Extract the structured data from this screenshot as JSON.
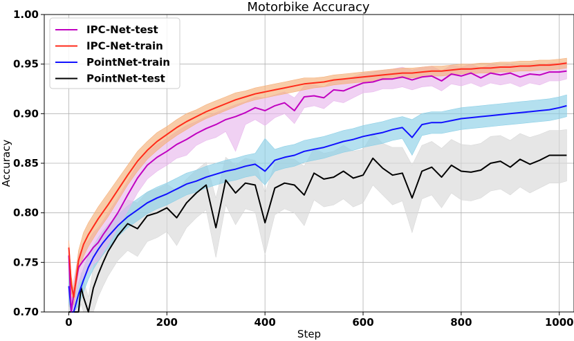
{
  "chart_data": {
    "type": "line",
    "title": "Motorbike Accuracy",
    "xlabel": "Step",
    "ylabel": "Accuracy",
    "xlim": [
      -50,
      1030
    ],
    "ylim": [
      0.7,
      1.0
    ],
    "xticks": [
      "0",
      "200",
      "400",
      "600",
      "800",
      "1000"
    ],
    "xtick_values": [
      0,
      200,
      400,
      600,
      800,
      1000
    ],
    "yticks": [
      "0.70",
      "0.75",
      "0.80",
      "0.85",
      "0.90",
      "0.95",
      "1.00"
    ],
    "ytick_values": [
      0.7,
      0.75,
      0.8,
      0.85,
      0.9,
      0.95,
      1.0
    ],
    "grid": true,
    "legend_position": "top-left",
    "series": [
      {
        "name": "IPC-Net-test",
        "color": "#c000c0",
        "band_color": "#e8b8ec",
        "x": [
          0,
          5,
          10,
          20,
          30,
          40,
          50,
          60,
          70,
          80,
          100,
          120,
          140,
          160,
          180,
          200,
          220,
          240,
          260,
          280,
          300,
          320,
          340,
          360,
          380,
          400,
          420,
          440,
          460,
          480,
          500,
          520,
          540,
          560,
          580,
          600,
          620,
          640,
          660,
          680,
          700,
          720,
          740,
          760,
          780,
          800,
          820,
          840,
          860,
          880,
          900,
          920,
          940,
          960,
          980,
          1000,
          1015
        ],
        "mean": [
          0.757,
          0.7,
          0.718,
          0.745,
          0.752,
          0.758,
          0.765,
          0.77,
          0.778,
          0.785,
          0.8,
          0.818,
          0.835,
          0.848,
          0.856,
          0.862,
          0.869,
          0.874,
          0.88,
          0.885,
          0.889,
          0.894,
          0.897,
          0.901,
          0.906,
          0.903,
          0.908,
          0.911,
          0.903,
          0.917,
          0.918,
          0.916,
          0.924,
          0.923,
          0.927,
          0.931,
          0.932,
          0.935,
          0.935,
          0.937,
          0.934,
          0.937,
          0.938,
          0.933,
          0.94,
          0.938,
          0.941,
          0.936,
          0.941,
          0.939,
          0.941,
          0.937,
          0.94,
          0.939,
          0.942,
          0.942,
          0.943
        ],
        "low": [
          0.74,
          0.7,
          0.702,
          0.728,
          0.735,
          0.74,
          0.748,
          0.752,
          0.76,
          0.768,
          0.785,
          0.802,
          0.82,
          0.834,
          0.842,
          0.848,
          0.855,
          0.858,
          0.868,
          0.873,
          0.876,
          0.882,
          0.862,
          0.889,
          0.894,
          0.888,
          0.896,
          0.9,
          0.89,
          0.906,
          0.908,
          0.905,
          0.913,
          0.911,
          0.916,
          0.921,
          0.922,
          0.925,
          0.925,
          0.927,
          0.924,
          0.927,
          0.928,
          0.923,
          0.93,
          0.928,
          0.931,
          0.927,
          0.931,
          0.929,
          0.931,
          0.927,
          0.931,
          0.929,
          0.933,
          0.933,
          0.935
        ],
        "high": [
          0.77,
          0.712,
          0.732,
          0.758,
          0.766,
          0.772,
          0.78,
          0.785,
          0.792,
          0.8,
          0.815,
          0.832,
          0.849,
          0.861,
          0.869,
          0.875,
          0.882,
          0.888,
          0.892,
          0.897,
          0.901,
          0.905,
          0.909,
          0.912,
          0.917,
          0.916,
          0.919,
          0.922,
          0.916,
          0.928,
          0.929,
          0.927,
          0.934,
          0.934,
          0.937,
          0.941,
          0.942,
          0.944,
          0.945,
          0.947,
          0.944,
          0.947,
          0.948,
          0.943,
          0.949,
          0.947,
          0.95,
          0.946,
          0.95,
          0.948,
          0.95,
          0.947,
          0.949,
          0.948,
          0.951,
          0.951,
          0.952
        ]
      },
      {
        "name": "IPC-Net-train",
        "color": "#ff2a1a",
        "band_color": "#f5b07a",
        "x": [
          0,
          5,
          10,
          20,
          30,
          40,
          50,
          60,
          70,
          80,
          100,
          120,
          140,
          160,
          180,
          200,
          220,
          240,
          260,
          280,
          300,
          320,
          340,
          360,
          380,
          400,
          420,
          440,
          460,
          480,
          500,
          520,
          540,
          560,
          580,
          600,
          620,
          640,
          660,
          680,
          700,
          720,
          740,
          760,
          780,
          800,
          820,
          840,
          860,
          880,
          900,
          920,
          940,
          960,
          980,
          1000,
          1015
        ],
        "mean": [
          0.765,
          0.728,
          0.715,
          0.752,
          0.768,
          0.778,
          0.786,
          0.794,
          0.801,
          0.808,
          0.823,
          0.838,
          0.852,
          0.863,
          0.872,
          0.879,
          0.886,
          0.892,
          0.897,
          0.902,
          0.906,
          0.91,
          0.914,
          0.917,
          0.92,
          0.922,
          0.924,
          0.926,
          0.928,
          0.93,
          0.931,
          0.932,
          0.934,
          0.935,
          0.936,
          0.937,
          0.938,
          0.939,
          0.94,
          0.941,
          0.941,
          0.942,
          0.943,
          0.943,
          0.944,
          0.945,
          0.945,
          0.946,
          0.946,
          0.947,
          0.947,
          0.948,
          0.948,
          0.949,
          0.949,
          0.95,
          0.951
        ],
        "low": [
          0.758,
          0.72,
          0.707,
          0.742,
          0.756,
          0.766,
          0.774,
          0.782,
          0.789,
          0.796,
          0.812,
          0.828,
          0.842,
          0.854,
          0.863,
          0.871,
          0.878,
          0.884,
          0.89,
          0.895,
          0.899,
          0.903,
          0.907,
          0.911,
          0.914,
          0.916,
          0.918,
          0.92,
          0.922,
          0.924,
          0.926,
          0.927,
          0.929,
          0.93,
          0.931,
          0.932,
          0.933,
          0.934,
          0.935,
          0.936,
          0.936,
          0.937,
          0.938,
          0.938,
          0.939,
          0.94,
          0.94,
          0.941,
          0.941,
          0.942,
          0.942,
          0.943,
          0.943,
          0.944,
          0.944,
          0.945,
          0.946
        ],
        "high": [
          0.772,
          0.736,
          0.723,
          0.762,
          0.78,
          0.79,
          0.798,
          0.806,
          0.813,
          0.82,
          0.834,
          0.848,
          0.862,
          0.872,
          0.881,
          0.887,
          0.894,
          0.9,
          0.904,
          0.909,
          0.913,
          0.917,
          0.921,
          0.923,
          0.926,
          0.928,
          0.93,
          0.932,
          0.934,
          0.936,
          0.936,
          0.937,
          0.939,
          0.94,
          0.941,
          0.942,
          0.943,
          0.944,
          0.945,
          0.946,
          0.946,
          0.947,
          0.948,
          0.948,
          0.949,
          0.95,
          0.95,
          0.951,
          0.951,
          0.952,
          0.952,
          0.953,
          0.953,
          0.954,
          0.954,
          0.955,
          0.956
        ]
      },
      {
        "name": "PointNet-train",
        "color": "#1010ff",
        "band_color": "#8ccfe6",
        "x": [
          0,
          5,
          10,
          20,
          30,
          40,
          50,
          60,
          70,
          80,
          100,
          120,
          140,
          160,
          180,
          200,
          220,
          240,
          260,
          280,
          300,
          320,
          340,
          360,
          380,
          400,
          420,
          440,
          460,
          480,
          500,
          520,
          540,
          560,
          580,
          600,
          620,
          640,
          660,
          680,
          700,
          720,
          740,
          760,
          780,
          800,
          820,
          840,
          860,
          880,
          900,
          920,
          940,
          960,
          980,
          1000,
          1015
        ],
        "mean": [
          0.726,
          0.7,
          0.7,
          0.718,
          0.732,
          0.745,
          0.755,
          0.763,
          0.77,
          0.776,
          0.787,
          0.796,
          0.803,
          0.81,
          0.815,
          0.819,
          0.824,
          0.829,
          0.832,
          0.836,
          0.839,
          0.842,
          0.844,
          0.847,
          0.849,
          0.842,
          0.853,
          0.856,
          0.858,
          0.862,
          0.864,
          0.866,
          0.869,
          0.872,
          0.874,
          0.877,
          0.879,
          0.881,
          0.884,
          0.886,
          0.876,
          0.889,
          0.891,
          0.891,
          0.893,
          0.895,
          0.896,
          0.897,
          0.898,
          0.899,
          0.9,
          0.901,
          0.902,
          0.903,
          0.904,
          0.906,
          0.908
        ],
        "low": [
          0.71,
          0.7,
          0.7,
          0.706,
          0.72,
          0.733,
          0.743,
          0.751,
          0.758,
          0.764,
          0.776,
          0.785,
          0.792,
          0.799,
          0.804,
          0.808,
          0.813,
          0.818,
          0.821,
          0.825,
          0.828,
          0.831,
          0.833,
          0.836,
          0.838,
          0.828,
          0.842,
          0.845,
          0.847,
          0.851,
          0.853,
          0.855,
          0.858,
          0.861,
          0.863,
          0.866,
          0.868,
          0.87,
          0.873,
          0.875,
          0.858,
          0.878,
          0.88,
          0.88,
          0.882,
          0.884,
          0.885,
          0.886,
          0.887,
          0.888,
          0.889,
          0.89,
          0.891,
          0.892,
          0.893,
          0.895,
          0.897
        ],
        "high": [
          0.742,
          0.712,
          0.71,
          0.73,
          0.744,
          0.757,
          0.767,
          0.775,
          0.782,
          0.788,
          0.798,
          0.807,
          0.814,
          0.821,
          0.826,
          0.83,
          0.835,
          0.84,
          0.843,
          0.847,
          0.85,
          0.853,
          0.855,
          0.858,
          0.86,
          0.875,
          0.864,
          0.867,
          0.869,
          0.873,
          0.875,
          0.877,
          0.88,
          0.883,
          0.885,
          0.888,
          0.89,
          0.892,
          0.895,
          0.897,
          0.894,
          0.9,
          0.902,
          0.902,
          0.904,
          0.906,
          0.907,
          0.908,
          0.909,
          0.91,
          0.911,
          0.912,
          0.913,
          0.914,
          0.915,
          0.917,
          0.919
        ]
      },
      {
        "name": "PointNet-test",
        "color": "#000000",
        "band_color": "#d8d8d8",
        "x": [
          0,
          10,
          20,
          25,
          30,
          40,
          50,
          60,
          70,
          80,
          100,
          120,
          140,
          160,
          180,
          200,
          220,
          240,
          260,
          280,
          300,
          320,
          340,
          360,
          380,
          400,
          420,
          440,
          460,
          480,
          500,
          520,
          540,
          560,
          580,
          600,
          620,
          640,
          660,
          680,
          700,
          720,
          740,
          760,
          780,
          800,
          820,
          840,
          860,
          880,
          900,
          920,
          940,
          960,
          980,
          1000,
          1015
        ],
        "mean": [
          0.7,
          0.7,
          0.7,
          0.725,
          0.715,
          0.7,
          0.724,
          0.738,
          0.75,
          0.761,
          0.777,
          0.789,
          0.784,
          0.797,
          0.8,
          0.805,
          0.795,
          0.81,
          0.82,
          0.828,
          0.785,
          0.833,
          0.82,
          0.83,
          0.828,
          0.79,
          0.825,
          0.83,
          0.828,
          0.818,
          0.84,
          0.834,
          0.836,
          0.842,
          0.835,
          0.838,
          0.855,
          0.845,
          0.838,
          0.84,
          0.815,
          0.842,
          0.846,
          0.836,
          0.848,
          0.842,
          0.841,
          0.843,
          0.85,
          0.852,
          0.846,
          0.854,
          0.849,
          0.853,
          0.858,
          0.858,
          0.858
        ],
        "low": [
          0.7,
          0.7,
          0.7,
          0.708,
          0.7,
          0.7,
          0.7,
          0.715,
          0.726,
          0.736,
          0.752,
          0.762,
          0.756,
          0.771,
          0.775,
          0.781,
          0.767,
          0.785,
          0.795,
          0.803,
          0.755,
          0.808,
          0.788,
          0.804,
          0.801,
          0.758,
          0.798,
          0.804,
          0.8,
          0.787,
          0.813,
          0.806,
          0.808,
          0.814,
          0.806,
          0.81,
          0.828,
          0.818,
          0.808,
          0.812,
          0.78,
          0.814,
          0.818,
          0.805,
          0.82,
          0.813,
          0.812,
          0.815,
          0.822,
          0.824,
          0.818,
          0.826,
          0.82,
          0.825,
          0.83,
          0.83,
          0.832
        ],
        "high": [
          0.705,
          0.71,
          0.712,
          0.74,
          0.732,
          0.715,
          0.745,
          0.76,
          0.772,
          0.784,
          0.8,
          0.813,
          0.81,
          0.821,
          0.824,
          0.829,
          0.822,
          0.834,
          0.843,
          0.851,
          0.815,
          0.856,
          0.848,
          0.855,
          0.853,
          0.82,
          0.85,
          0.855,
          0.854,
          0.847,
          0.865,
          0.86,
          0.862,
          0.868,
          0.862,
          0.864,
          0.88,
          0.87,
          0.866,
          0.866,
          0.848,
          0.868,
          0.872,
          0.865,
          0.874,
          0.869,
          0.868,
          0.87,
          0.877,
          0.878,
          0.873,
          0.88,
          0.876,
          0.879,
          0.883,
          0.883,
          0.884
        ]
      }
    ]
  }
}
